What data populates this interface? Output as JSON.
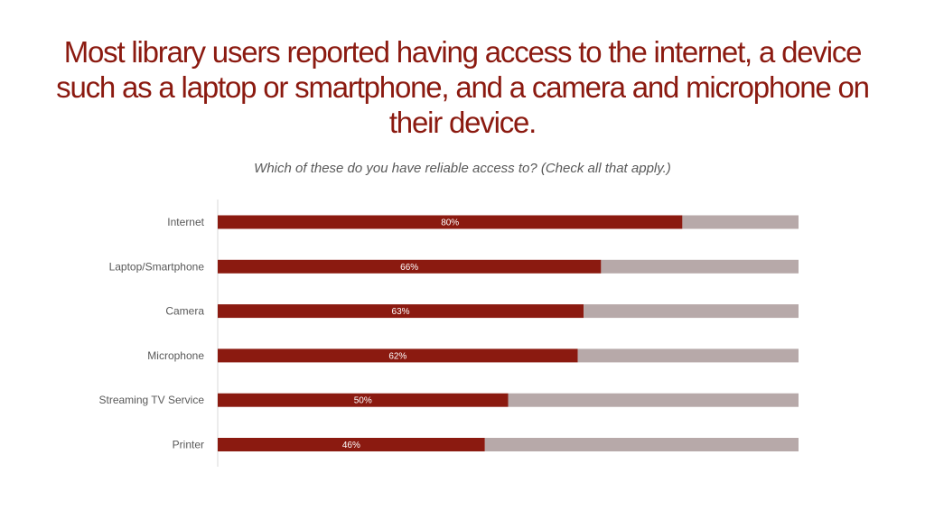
{
  "title": "Most library users reported having access to the internet, a device such as a laptop or smartphone, and a camera and microphone on their device.",
  "colors": {
    "accent": "#8b1a10",
    "remainder": "#b7a9a9",
    "axis": "#d9d9d9",
    "text": "#595959"
  },
  "chart_data": {
    "type": "bar",
    "orientation": "horizontal",
    "stacked": true,
    "title": "Which of these do you have reliable access to? (Check all that apply.)",
    "categories": [
      "Internet",
      "Laptop/Smartphone",
      "Camera",
      "Microphone",
      "Streaming TV Service",
      "Printer"
    ],
    "series": [
      {
        "name": "Have access",
        "values": [
          80,
          66,
          63,
          62,
          50,
          46
        ],
        "labels": [
          "80%",
          "66%",
          "63%",
          "62%",
          "50%",
          "46%"
        ]
      },
      {
        "name": "Remainder",
        "values": [
          20,
          34,
          37,
          38,
          50,
          54
        ]
      }
    ],
    "xlim": [
      0,
      100
    ],
    "xlabel": "",
    "ylabel": "",
    "grid": false,
    "legend": "none"
  }
}
